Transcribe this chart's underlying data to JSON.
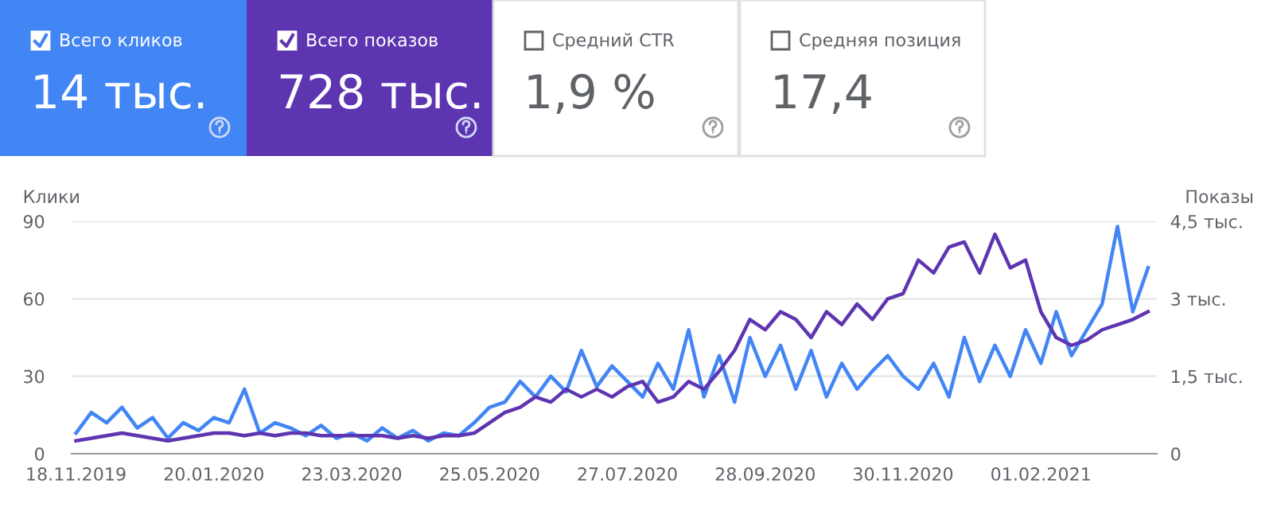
{
  "chart_data": [
    {
      "type": "other",
      "annotations": [
        "Всего кликов",
        "14 тыс.",
        "Всего показов",
        "728 тыс.",
        "Средний CTR",
        "1,9 %",
        "Средняя позиция",
        "17,4"
      ]
    },
    {
      "type": "line",
      "ylabel": "Клики",
      "y2label": "Показы",
      "x": [
        "2019-11-18",
        "2019-11-25",
        "2019-12-02",
        "2019-12-09",
        "2019-12-16",
        "2019-12-23",
        "2019-12-30",
        "2020-01-06",
        "2020-01-13",
        "2020-01-20",
        "2020-01-27",
        "2020-02-03",
        "2020-02-10",
        "2020-02-17",
        "2020-02-24",
        "2020-03-02",
        "2020-03-09",
        "2020-03-16",
        "2020-03-23",
        "2020-03-30",
        "2020-04-06",
        "2020-04-13",
        "2020-04-20",
        "2020-04-27",
        "2020-05-04",
        "2020-05-11",
        "2020-05-18",
        "2020-05-25",
        "2020-06-01",
        "2020-06-08",
        "2020-06-15",
        "2020-06-22",
        "2020-06-29",
        "2020-07-06",
        "2020-07-13",
        "2020-07-20",
        "2020-07-27",
        "2020-08-03",
        "2020-08-10",
        "2020-08-17",
        "2020-08-24",
        "2020-08-31",
        "2020-09-07",
        "2020-09-14",
        "2020-09-21",
        "2020-09-28",
        "2020-10-05",
        "2020-10-12",
        "2020-10-19",
        "2020-10-26",
        "2020-11-02",
        "2020-11-09",
        "2020-11-16",
        "2020-11-23",
        "2020-11-30",
        "2020-12-07",
        "2020-12-14",
        "2020-12-21",
        "2020-12-28",
        "2021-01-04",
        "2021-01-11",
        "2021-01-18",
        "2021-01-25",
        "2021-02-01",
        "2021-02-08",
        "2021-02-15",
        "2021-02-22",
        "2021-03-01",
        "2021-03-08",
        "2021-03-15",
        "2021-03-22"
      ],
      "series": [
        {
          "color": "#4285f4",
          "values": [
            8,
            16,
            12,
            18,
            10,
            14,
            6,
            12,
            9,
            14,
            12,
            25,
            8,
            12,
            10,
            7,
            11,
            6,
            8,
            5,
            10,
            6,
            9,
            5,
            8,
            7,
            12,
            18,
            20,
            28,
            22,
            30,
            24,
            40,
            26,
            34,
            28,
            22,
            35,
            25,
            48,
            22,
            38,
            20,
            45,
            30,
            42,
            25,
            40,
            22,
            35,
            25,
            32,
            38,
            30,
            25,
            35,
            22,
            45,
            28,
            42,
            30,
            48,
            35,
            55,
            38,
            48,
            58,
            88,
            55,
            72
          ]
        },
        {
          "color": "#5e35b1",
          "axis": "y2",
          "values": [
            0.25,
            0.3,
            0.35,
            0.4,
            0.35,
            0.3,
            0.25,
            0.3,
            0.35,
            0.4,
            0.4,
            0.35,
            0.4,
            0.35,
            0.4,
            0.4,
            0.35,
            0.35,
            0.35,
            0.35,
            0.35,
            0.3,
            0.35,
            0.3,
            0.35,
            0.35,
            0.4,
            0.6,
            0.8,
            0.9,
            1.1,
            1.0,
            1.25,
            1.1,
            1.25,
            1.1,
            1.3,
            1.4,
            1.0,
            1.1,
            1.4,
            1.25,
            1.6,
            2.0,
            2.6,
            2.4,
            2.75,
            2.6,
            2.25,
            2.75,
            2.5,
            2.9,
            2.6,
            3.0,
            3.1,
            3.75,
            3.5,
            4.0,
            4.1,
            3.5,
            4.25,
            3.6,
            3.75,
            2.75,
            2.25,
            2.1,
            2.2,
            2.4,
            2.5,
            2.6,
            2.75
          ]
        }
      ],
      "xlim": [
        "2019-11-16",
        "2021-03-26"
      ],
      "xticks": [
        {
          "value": "2019-11-18",
          "label": "18.11.2019"
        },
        {
          "value": "2020-01-20",
          "label": "20.01.2020"
        },
        {
          "value": "2020-03-23",
          "label": "23.03.2020"
        },
        {
          "value": "2020-05-25",
          "label": "25.05.2020"
        },
        {
          "value": "2020-07-27",
          "label": "27.07.2020"
        },
        {
          "value": "2020-09-28",
          "label": "28.09.2020"
        },
        {
          "value": "2020-11-30",
          "label": "30.11.2020"
        },
        {
          "value": "2021-02-01",
          "label": "01.02.2021"
        }
      ],
      "ylim": [
        0,
        90
      ],
      "yticks": [
        0,
        30,
        60,
        90
      ],
      "y2lim": [
        0,
        4.5
      ],
      "y2ticks": [
        0,
        {
          "value": 1.5,
          "label": "1,5 тыс."
        },
        {
          "value": 3,
          "label": "3 тыс."
        },
        {
          "value": 4.5,
          "label": "4,5 тыс."
        }
      ],
      "grid": "y",
      "legend": false
    }
  ]
}
